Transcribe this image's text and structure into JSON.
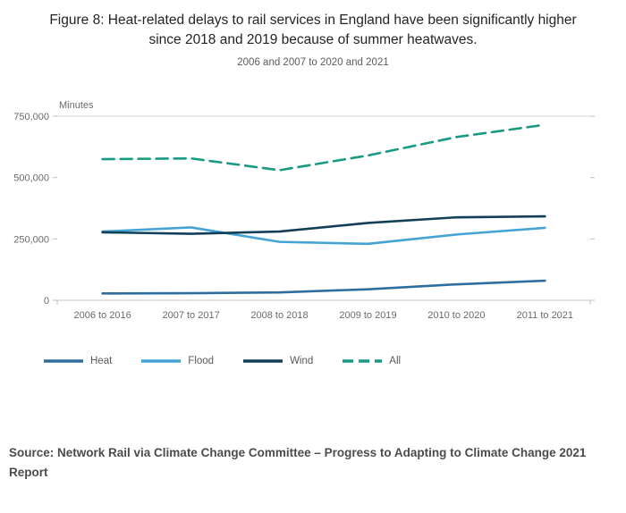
{
  "header": {
    "title": "Figure 8: Heat-related delays to rail services in England have been significantly higher since 2018 and 2019 because of summer heatwaves.",
    "subtitle": "2006 and 2007 to 2020 and 2021"
  },
  "chart_data": {
    "type": "line",
    "title": "Figure 8: Heat-related delays to rail services in England have been significantly higher since 2018 and 2019 because of summer heatwaves.",
    "subtitle": "2006 and 2007 to 2020 and 2021",
    "ylabel": "Minutes",
    "xlabel": "",
    "ylim": [
      0,
      750000
    ],
    "yticks": [
      0,
      250000,
      500000,
      750000
    ],
    "ytick_labels": [
      "0",
      "250,000",
      "500,000",
      "750,000"
    ],
    "grid": "horizontal-top-gridline-and-baseline",
    "legend_position": "bottom-left",
    "categories": [
      "2006 to 2016",
      "2007 to 2017",
      "2008 to 2018",
      "2009 to 2019",
      "2010 to 2020",
      "2011 to 2021"
    ],
    "series": [
      {
        "name": "Heat",
        "color": "#2e6e9e",
        "dash": "solid",
        "values": [
          28000,
          29000,
          32000,
          45000,
          65000,
          80000
        ]
      },
      {
        "name": "Flood",
        "color": "#44a3d5",
        "dash": "solid",
        "values": [
          280000,
          297000,
          238000,
          230000,
          268000,
          295000
        ]
      },
      {
        "name": "Wind",
        "color": "#123f58",
        "dash": "solid",
        "values": [
          277000,
          271000,
          280000,
          315000,
          338000,
          342000
        ]
      },
      {
        "name": "All",
        "color": "#189a84",
        "dash": "dashed",
        "values": [
          575000,
          578000,
          530000,
          590000,
          665000,
          715000
        ]
      }
    ]
  },
  "footer": {
    "source": "Source: Network Rail via Climate Change Committee – Progress to Adapting to Climate Change 2021 Report"
  }
}
